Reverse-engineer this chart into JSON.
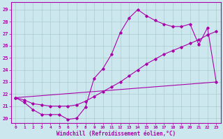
{
  "xlabel": "Windchill (Refroidissement éolien,°C)",
  "xlim": [
    -0.5,
    23.5
  ],
  "ylim": [
    19.6,
    29.6
  ],
  "xticks": [
    0,
    1,
    2,
    3,
    4,
    5,
    6,
    7,
    8,
    9,
    10,
    11,
    12,
    13,
    14,
    15,
    16,
    17,
    18,
    19,
    20,
    21,
    22,
    23
  ],
  "yticks": [
    20,
    21,
    22,
    23,
    24,
    25,
    26,
    27,
    28,
    29
  ],
  "bg_color": "#cce8ee",
  "line_color": "#aa00aa",
  "grid_color": "#aacccc",
  "curve1_x": [
    0,
    1,
    2,
    3,
    4,
    5,
    6,
    7,
    8,
    9,
    10,
    11,
    12,
    13,
    14,
    15,
    16,
    17,
    18,
    19,
    20,
    21,
    22,
    23
  ],
  "curve1_y": [
    21.7,
    21.3,
    20.7,
    20.3,
    20.3,
    20.3,
    19.9,
    20.0,
    20.9,
    23.3,
    24.1,
    25.3,
    27.1,
    28.3,
    29.0,
    28.5,
    28.1,
    27.8,
    27.6,
    27.6,
    27.8,
    26.1,
    27.5,
    23.0
  ],
  "curve2_x": [
    0,
    1,
    2,
    3,
    4,
    5,
    6,
    7,
    8,
    9,
    10,
    11,
    12,
    13,
    14,
    15,
    16,
    17,
    18,
    19,
    20,
    21,
    22,
    23
  ],
  "curve2_y": [
    21.7,
    21.5,
    21.2,
    21.1,
    21.0,
    21.0,
    21.0,
    21.1,
    21.4,
    21.8,
    22.2,
    22.6,
    23.0,
    23.5,
    24.0,
    24.5,
    24.9,
    25.3,
    25.6,
    25.9,
    26.2,
    26.5,
    26.9,
    27.2
  ],
  "line3_x": [
    0,
    23
  ],
  "line3_y": [
    21.7,
    23.0
  ]
}
